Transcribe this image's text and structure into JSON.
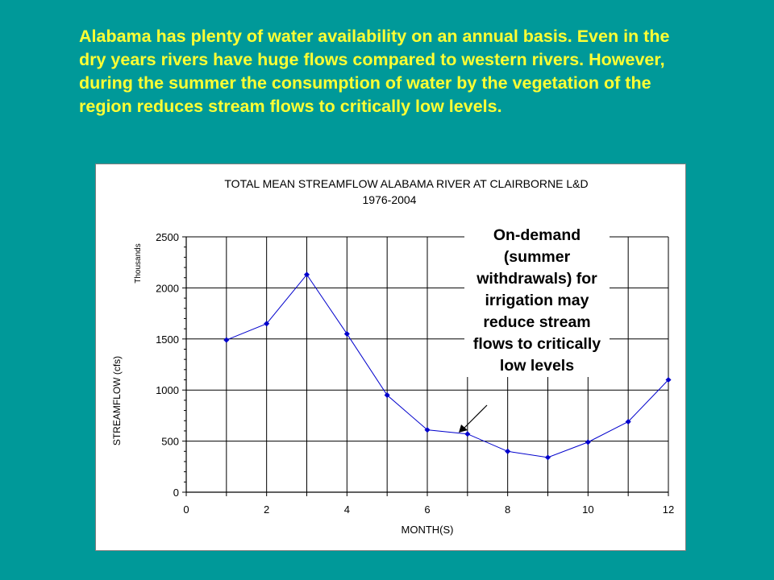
{
  "intro_text": "Alabama has plenty of water availability on an annual basis. Even in the dry years rivers have huge flows compared to western rivers. However, during the summer the consumption of water by the vegetation of the region reduces stream flows to critically low levels.",
  "callout_text": "On-demand (summer withdrawals) for irrigation may reduce stream flows to critically low levels",
  "colors": {
    "background": "#009999",
    "intro_text": "#ffff33",
    "series_line": "#0000cc"
  },
  "chart_data": {
    "type": "line",
    "title": "TOTAL MEAN STREAMFLOW ALABAMA RIVER AT CLAIRBORNE L&D",
    "subtitle": "1976-2004",
    "xlabel": "MONTH(S)",
    "ylabel": "STREAMFLOW (cfs)",
    "y_unit_label": "Thousands",
    "xlim": [
      0,
      12
    ],
    "ylim": [
      0,
      2500
    ],
    "x_ticks": [
      0,
      2,
      4,
      6,
      8,
      10,
      12
    ],
    "y_ticks": [
      0,
      500,
      1000,
      1500,
      2000,
      2500
    ],
    "grid": true,
    "series": [
      {
        "x": [
          1,
          2,
          3,
          4,
          5,
          6,
          7,
          8,
          9,
          10,
          11,
          12
        ],
        "y": [
          1490,
          1650,
          2130,
          1550,
          950,
          610,
          570,
          400,
          340,
          490,
          690,
          1100
        ]
      }
    ]
  }
}
